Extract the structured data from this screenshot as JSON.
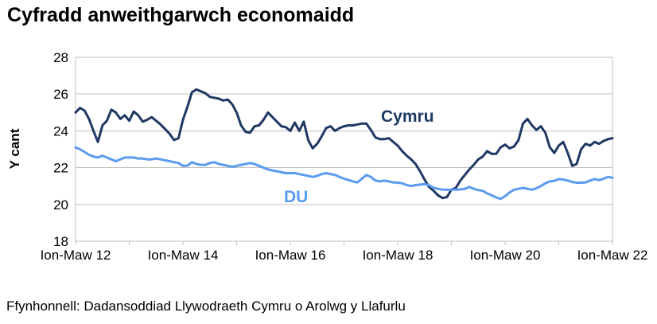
{
  "page": {
    "title": "Cyfradd anweithgarwch economaidd",
    "source": "Ffynhonnell: Dadansoddiad Llywodraeth Cymru o Arolwg y Llafurlu"
  },
  "chart_data": {
    "type": "line",
    "title": "Cyfradd anweithgarwch economaidd",
    "ylabel": "Y cant",
    "ylim": [
      18,
      28
    ],
    "yticks": [
      28,
      26,
      24,
      22,
      20,
      18
    ],
    "xticks": [
      "Ion-Maw 12",
      "Ion-Maw 14",
      "Ion-Maw 16",
      "Ion-Maw 18",
      "Ion-Maw 20",
      "Ion-Maw 22"
    ],
    "grid": "horizontal",
    "legend": "inline-labels-on-plot",
    "colors": {
      "cymru": "#1F3864",
      "du": "#5B9BF0",
      "grid": "#BFBFBF"
    },
    "series": [
      {
        "name": "Cymru",
        "color": "#1F3864",
        "values": [
          25.0,
          25.25,
          25.1,
          24.65,
          24.0,
          23.4,
          24.3,
          24.55,
          25.15,
          25.0,
          24.65,
          24.85,
          24.55,
          25.05,
          24.85,
          24.5,
          24.6,
          24.75,
          24.55,
          24.35,
          24.1,
          23.85,
          23.5,
          23.6,
          24.6,
          25.3,
          26.1,
          26.25,
          26.15,
          26.05,
          25.85,
          25.8,
          25.75,
          25.65,
          25.7,
          25.45,
          25.0,
          24.3,
          23.95,
          23.9,
          24.25,
          24.3,
          24.6,
          25.0,
          24.75,
          24.5,
          24.25,
          24.2,
          24.0,
          24.45,
          24.0,
          24.5,
          23.5,
          23.05,
          23.3,
          23.7,
          24.15,
          24.25,
          24.0,
          24.15,
          24.25,
          24.3,
          24.3,
          24.35,
          24.4,
          24.4,
          24.05,
          23.65,
          23.55,
          23.55,
          23.6,
          23.4,
          23.2,
          22.9,
          22.65,
          22.45,
          22.2,
          21.8,
          21.35,
          20.95,
          20.75,
          20.5,
          20.35,
          20.4,
          20.8,
          20.9,
          21.3,
          21.6,
          21.9,
          22.15,
          22.45,
          22.6,
          22.9,
          22.75,
          22.75,
          23.1,
          23.25,
          23.05,
          23.15,
          23.5,
          24.4,
          24.65,
          24.3,
          24.05,
          24.25,
          23.9,
          23.1,
          22.8,
          23.2,
          23.4,
          22.8,
          22.1,
          22.2,
          23.0,
          23.3,
          23.2,
          23.4,
          23.3,
          23.45,
          23.55,
          23.6
        ]
      },
      {
        "name": "DU",
        "color": "#5B9BF0",
        "values": [
          23.1,
          23.0,
          22.85,
          22.7,
          22.6,
          22.55,
          22.65,
          22.55,
          22.45,
          22.35,
          22.45,
          22.55,
          22.55,
          22.55,
          22.5,
          22.5,
          22.45,
          22.45,
          22.5,
          22.45,
          22.4,
          22.35,
          22.3,
          22.25,
          22.1,
          22.1,
          22.3,
          22.2,
          22.15,
          22.15,
          22.25,
          22.3,
          22.2,
          22.15,
          22.1,
          22.05,
          22.1,
          22.15,
          22.2,
          22.25,
          22.2,
          22.1,
          22.0,
          21.9,
          21.85,
          21.8,
          21.75,
          21.7,
          21.7,
          21.7,
          21.65,
          21.6,
          21.55,
          21.5,
          21.55,
          21.65,
          21.7,
          21.65,
          21.6,
          21.5,
          21.4,
          21.33,
          21.25,
          21.2,
          21.4,
          21.6,
          21.5,
          21.3,
          21.25,
          21.3,
          21.25,
          21.2,
          21.18,
          21.15,
          21.05,
          21.0,
          21.05,
          21.08,
          21.1,
          21.05,
          20.9,
          20.85,
          20.8,
          20.8,
          20.8,
          20.8,
          20.82,
          20.85,
          20.95,
          20.85,
          20.78,
          20.74,
          20.6,
          20.5,
          20.38,
          20.3,
          20.45,
          20.65,
          20.8,
          20.85,
          20.9,
          20.85,
          20.8,
          20.88,
          21.0,
          21.15,
          21.25,
          21.28,
          21.38,
          21.35,
          21.3,
          21.22,
          21.18,
          21.18,
          21.2,
          21.3,
          21.38,
          21.32,
          21.4,
          21.5,
          21.45
        ]
      }
    ]
  }
}
